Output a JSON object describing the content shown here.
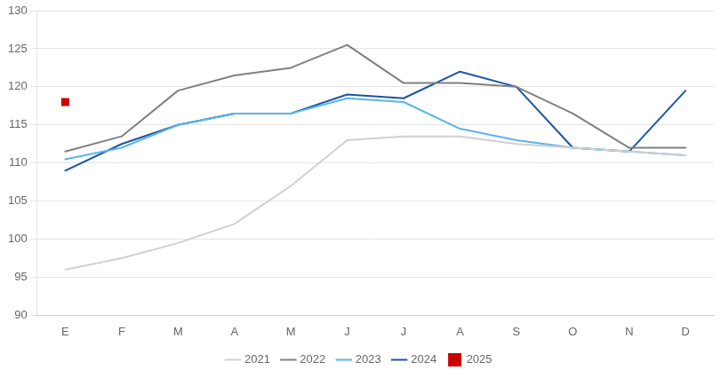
{
  "chart_data": {
    "type": "line",
    "categories": [
      "E",
      "F",
      "M",
      "A",
      "M",
      "J",
      "J",
      "A",
      "S",
      "O",
      "N",
      "D"
    ],
    "series": [
      {
        "name": "2021",
        "color": "#d0d0d0",
        "marker": "none",
        "line_style": "solid",
        "values": [
          96,
          97.5,
          99.5,
          102,
          107,
          113,
          113.5,
          113.5,
          112.5,
          112,
          111.5,
          111
        ]
      },
      {
        "name": "2022",
        "color": "#808080",
        "marker": "none",
        "line_style": "solid",
        "values": [
          111.5,
          113.5,
          119.5,
          121.5,
          122.5,
          125.5,
          120.5,
          120.5,
          120,
          116.5,
          112,
          112
        ]
      },
      {
        "name": "2023",
        "color": "#5ab4e8",
        "marker": "none",
        "line_style": "solid",
        "values": [
          110.5,
          112,
          115,
          116.5,
          116.5,
          118.5,
          118,
          114.5,
          113,
          112,
          111.5,
          111
        ]
      },
      {
        "name": "2024",
        "color": "#1a56a0",
        "marker": "none",
        "line_style": "solid",
        "values": [
          109,
          112.5,
          115,
          116.5,
          116.5,
          119,
          118.5,
          122,
          120,
          112,
          111.5,
          119.5
        ]
      },
      {
        "name": "2025",
        "color": "#cc0000",
        "marker": "square",
        "line_style": "none",
        "values": [
          118,
          null,
          null,
          null,
          null,
          null,
          null,
          null,
          null,
          null,
          null,
          null
        ]
      }
    ],
    "ylim": [
      90,
      130
    ],
    "yticks": [
      90,
      95,
      100,
      105,
      110,
      115,
      120,
      125,
      130
    ],
    "grid": true,
    "legend": "bottom"
  }
}
